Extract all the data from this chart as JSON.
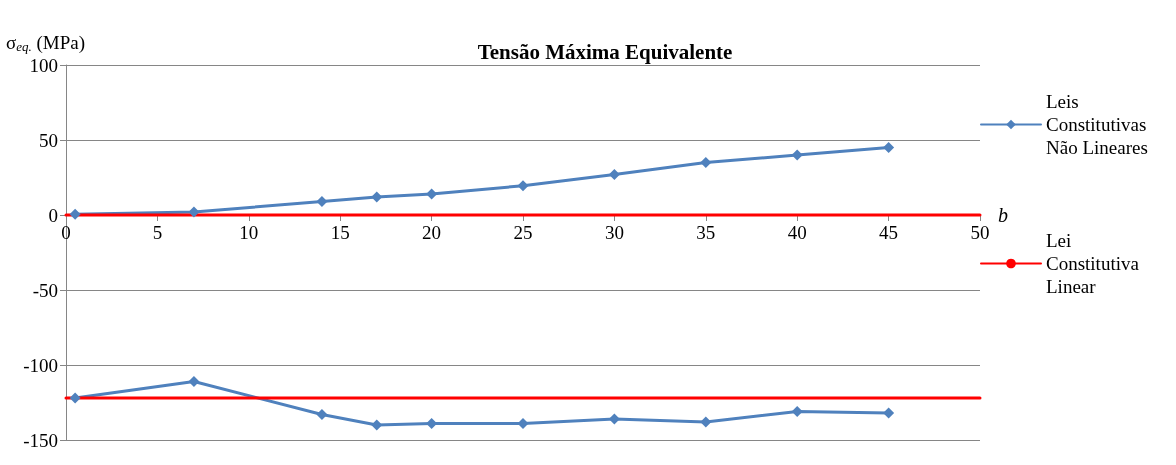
{
  "chart_data": {
    "type": "line",
    "title": "Tensão Máxima Equivalente",
    "xlabel": "b",
    "ylabel": "σ$_{eq.}$ (MPa)",
    "xlim": [
      0,
      50
    ],
    "xticks": [
      0,
      5,
      10,
      15,
      20,
      25,
      30,
      35,
      40,
      45,
      50
    ],
    "ylim": [
      -150,
      100
    ],
    "yticks": [
      -150,
      -100,
      -50,
      0,
      50,
      100
    ],
    "grid": "y",
    "legend": "right",
    "marker": "diamond",
    "line_style": "solid",
    "series": [
      {
        "name": "Leis Constitutivas Não Lineares",
        "color": "#4f81bd",
        "x": [
          0.5,
          7,
          14,
          17,
          20,
          25,
          30,
          35,
          40,
          45
        ],
        "values": [
          0.5,
          2,
          9,
          12,
          14,
          19.5,
          27,
          35,
          40,
          45
        ]
      },
      {
        "color": "#4f81bd",
        "x": [
          0.5,
          7,
          14,
          17,
          20,
          25,
          30,
          35,
          40,
          45
        ],
        "values": [
          -122,
          -111,
          -133,
          -140,
          -139,
          -139,
          -136,
          -138,
          -131,
          -132
        ]
      },
      {
        "name": "Lei Constitutiva Linear",
        "color": "#ff0000",
        "marker": "none",
        "x": [
          0,
          50
        ],
        "values": [
          0,
          0
        ]
      },
      {
        "color": "#ff0000",
        "marker": "none",
        "x": [
          0,
          50
        ],
        "values": [
          -122,
          -122
        ]
      }
    ]
  }
}
